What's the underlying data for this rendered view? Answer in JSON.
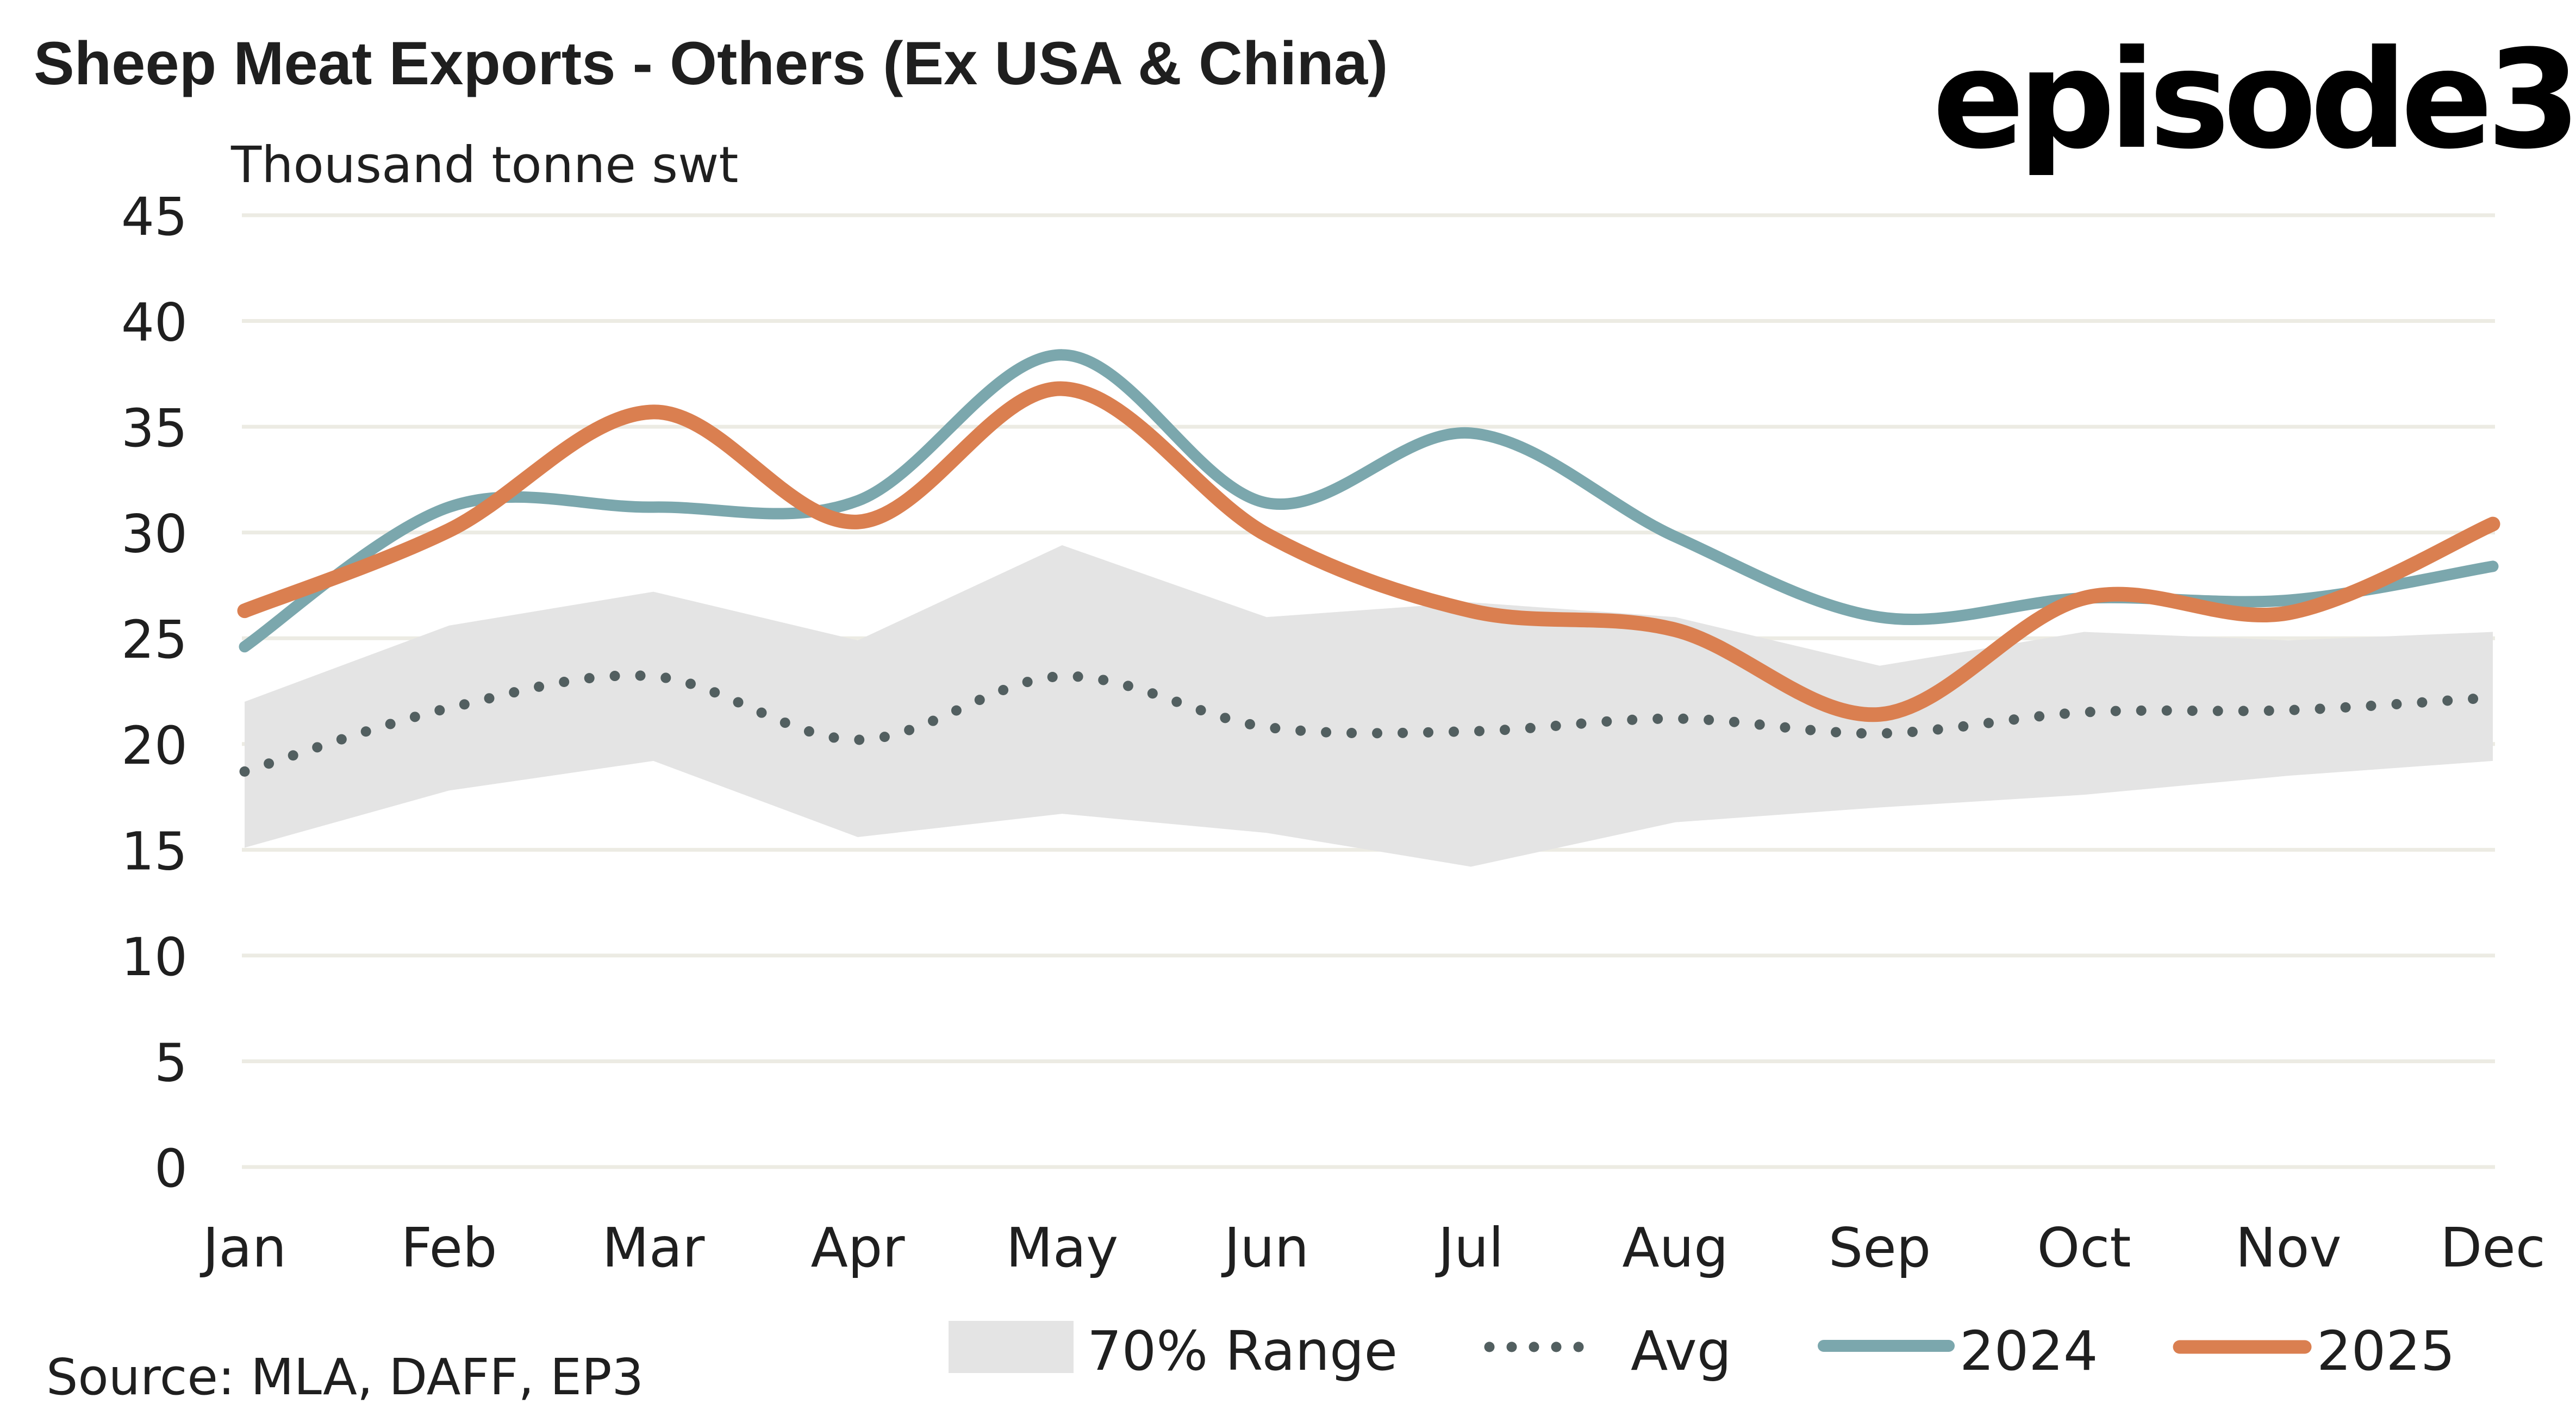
{
  "brand": {
    "logo_text": "episode3"
  },
  "chart_data": {
    "type": "line",
    "title": "Sheep Meat Exports - Others (Ex USA & China)",
    "ylabel": "Thousand tonne swt",
    "xlabel": "",
    "source": "Source: MLA, DAFF, EP3",
    "categories": [
      "Jan",
      "Feb",
      "Mar",
      "Apr",
      "May",
      "Jun",
      "Jul",
      "Aug",
      "Sep",
      "Oct",
      "Nov",
      "Dec"
    ],
    "ylim": [
      0,
      45
    ],
    "yticks": [
      0,
      5,
      10,
      15,
      20,
      25,
      30,
      35,
      40,
      45
    ],
    "grid": true,
    "legend_position": "bottom",
    "range_band": {
      "name": "70% Range",
      "color": "#e4e4e4",
      "upper": [
        22.0,
        25.6,
        27.2,
        24.9,
        29.4,
        26.0,
        26.7,
        26.0,
        23.7,
        25.3,
        24.9,
        25.3
      ],
      "lower": [
        15.1,
        17.8,
        19.2,
        15.6,
        16.7,
        15.8,
        14.2,
        16.3,
        17.0,
        17.6,
        18.5,
        19.2
      ]
    },
    "series": [
      {
        "name": "Avg",
        "style": "dotted",
        "color": "#525f60",
        "values": [
          18.7,
          21.7,
          23.2,
          20.2,
          23.2,
          20.8,
          20.6,
          21.2,
          20.5,
          21.5,
          21.6,
          22.2
        ]
      },
      {
        "name": "2024",
        "style": "solid",
        "color": "#7ba7ad",
        "values": [
          24.6,
          31.2,
          31.2,
          31.5,
          38.4,
          31.4,
          34.7,
          29.8,
          26.0,
          26.9,
          26.8,
          28.4
        ]
      },
      {
        "name": "2025",
        "style": "solid",
        "color": "#da7f50",
        "values": [
          26.3,
          30.1,
          35.7,
          30.5,
          36.8,
          29.9,
          26.3,
          25.4,
          21.4,
          26.9,
          26.2,
          30.4
        ]
      }
    ]
  }
}
